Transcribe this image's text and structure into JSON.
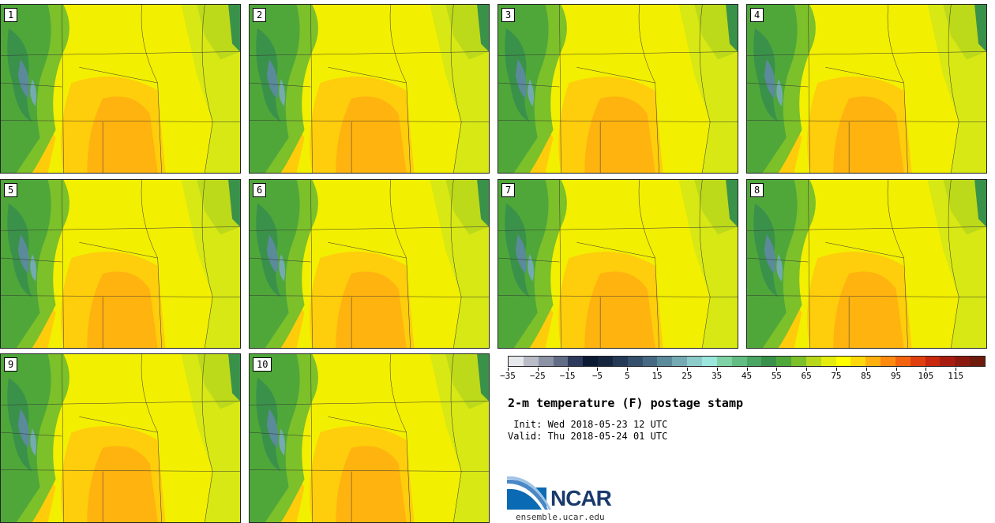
{
  "panels": [
    {
      "label": "1"
    },
    {
      "label": "2"
    },
    {
      "label": "3"
    },
    {
      "label": "4"
    },
    {
      "label": "5"
    },
    {
      "label": "6"
    },
    {
      "label": "7"
    },
    {
      "label": "8"
    },
    {
      "label": "9"
    },
    {
      "label": "10"
    }
  ],
  "colorbar": {
    "colors": [
      "#e6e8ec",
      "#b9bcc6",
      "#8d93a6",
      "#626c87",
      "#2e3a5c",
      "#0c1a33",
      "#16263f",
      "#243a56",
      "#34506c",
      "#466a84",
      "#5b8a9b",
      "#75aab3",
      "#8ccbc9",
      "#9be6dc",
      "#7fd2a4",
      "#62bd82",
      "#4ba663",
      "#3a924a",
      "#4fa73a",
      "#7cc02a",
      "#b6d71a",
      "#e3ec0e",
      "#ffff00",
      "#ffd80c",
      "#ffb00e",
      "#ff8a10",
      "#f36411",
      "#e0400f",
      "#c8280e",
      "#a81c10",
      "#8a1a10",
      "#6e1a0c"
    ],
    "tick_labels": [
      "−35",
      "−25",
      "−15",
      "−5",
      "5",
      "15",
      "25",
      "35",
      "45",
      "55",
      "65",
      "75",
      "85",
      "95",
      "105",
      "115"
    ]
  },
  "title": "2-m temperature (F) postage stamp",
  "init": " Init: Wed 2018-05-23 12 UTC",
  "valid": "Valid: Thu 2018-05-24 01 UTC",
  "logo": {
    "text": "NCAR",
    "site": "ensemble.ucar.edu",
    "color": "#1a3a6b"
  }
}
